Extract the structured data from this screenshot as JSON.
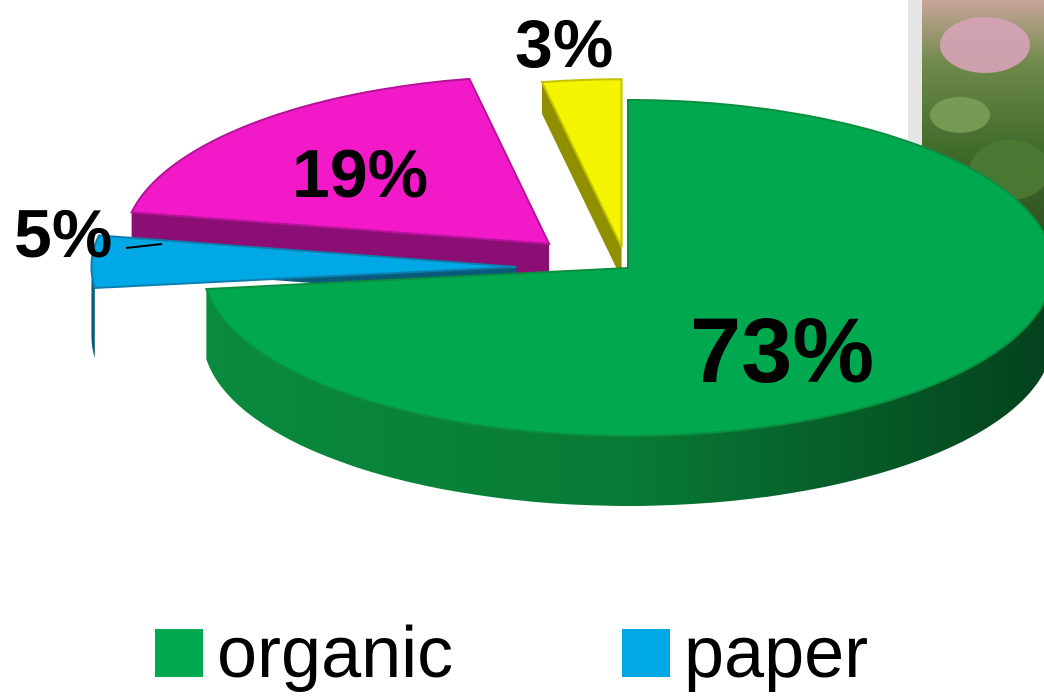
{
  "chart_data": {
    "type": "pie",
    "title": "",
    "categories": [
      "organic",
      "paper",
      "",
      ""
    ],
    "values": [
      73,
      5,
      19,
      3
    ],
    "data_labels": [
      "73%",
      "5%",
      "19%",
      "3%"
    ],
    "colors": {
      "organic": "#00a94f",
      "paper": "#00a9e6",
      "slice_3": "#f219c9",
      "slice_4": "#f4f400"
    },
    "legend": {
      "placement": "bottom",
      "entries": [
        {
          "label": "organic",
          "color": "#00a94f"
        },
        {
          "label": "paper",
          "color": "#00a9e6"
        }
      ]
    },
    "exploded": true,
    "three_d": true
  }
}
